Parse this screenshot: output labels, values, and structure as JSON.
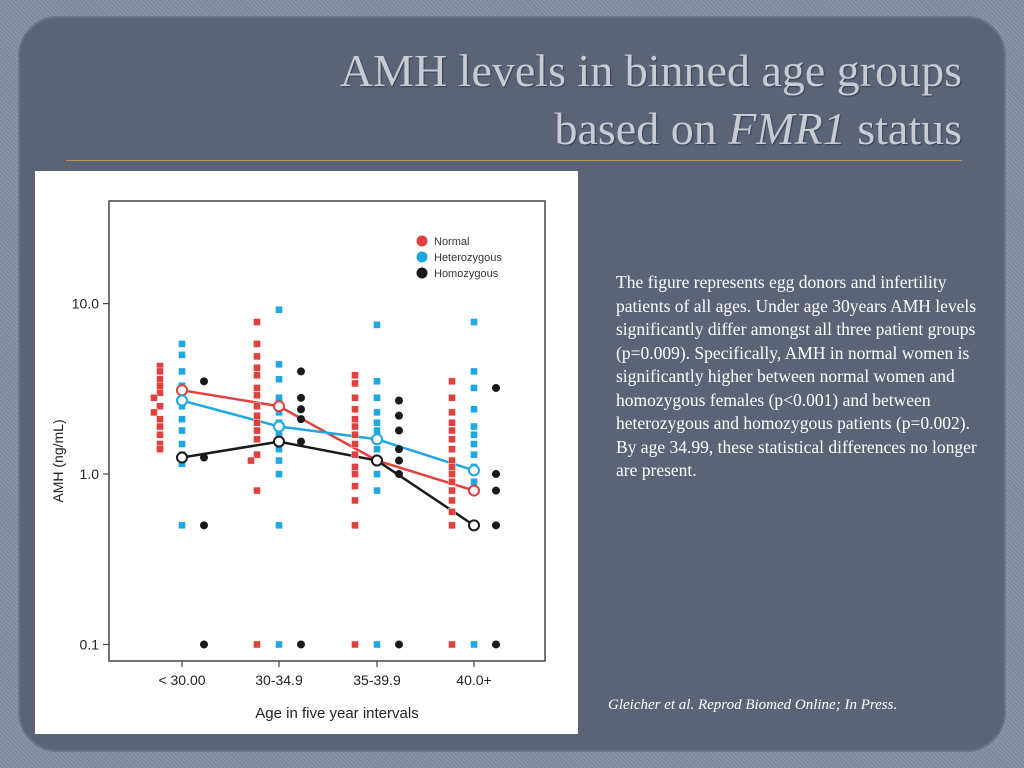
{
  "slide": {
    "title_line1": "AMH levels in binned age groups",
    "title_line2_prefix": "based on ",
    "title_line2_italic": "FMR1",
    "title_line2_suffix": " status",
    "description": "The figure represents egg donors and infertility patients of all ages. Under age 30years AMH levels significantly differ amongst all three patient groups (p=0.009). Specifically, AMH in normal women is significantly higher between normal women and homozygous females (p<0.001) and between heterozygous and homozygous patients (p=0.002). By age 34.99, these statistical differences no longer are present.",
    "citation": "Gleicher et al. Reprod Biomed Online; In Press.",
    "colors": {
      "background": "#8a94a6",
      "panel": "#5c6377",
      "title": "#c9cbd3",
      "rule": "#b59a52"
    }
  },
  "chart_data": {
    "type": "scatter",
    "title": "",
    "xlabel": "Age in five year intervals",
    "ylabel": "AMH (ng/mL)",
    "yscale": "log",
    "ylim": [
      0.08,
      40
    ],
    "ytick_labels": [
      "0.1",
      "1.0",
      "10.0"
    ],
    "ytick_values": [
      0.1,
      1.0,
      10.0
    ],
    "categories": [
      "< 30.00",
      "30-34.9",
      "35-39.9",
      "40.0+"
    ],
    "legend_position": "top-right",
    "series": [
      {
        "name": "Normal",
        "color": "#e0413c",
        "mean_line": [
          3.1,
          2.5,
          1.2,
          0.8
        ],
        "points": [
          [
            0,
            4.3
          ],
          [
            0,
            4.0
          ],
          [
            0,
            3.6
          ],
          [
            0,
            3.3
          ],
          [
            0,
            3.0
          ],
          [
            0,
            2.8
          ],
          [
            0,
            2.5
          ],
          [
            0,
            2.3
          ],
          [
            0,
            2.1
          ],
          [
            0,
            1.9
          ],
          [
            0,
            1.7
          ],
          [
            0,
            1.5
          ],
          [
            0,
            1.4
          ],
          [
            1,
            7.8
          ],
          [
            1,
            5.8
          ],
          [
            1,
            4.9
          ],
          [
            1,
            4.2
          ],
          [
            1,
            3.8
          ],
          [
            1,
            3.2
          ],
          [
            1,
            2.9
          ],
          [
            1,
            2.5
          ],
          [
            1,
            2.2
          ],
          [
            1,
            2.0
          ],
          [
            1,
            1.8
          ],
          [
            1,
            1.6
          ],
          [
            1,
            1.3
          ],
          [
            1,
            1.2
          ],
          [
            1,
            0.8
          ],
          [
            1,
            0.1
          ],
          [
            2,
            3.8
          ],
          [
            2,
            3.4
          ],
          [
            2,
            2.8
          ],
          [
            2,
            2.4
          ],
          [
            2,
            2.1
          ],
          [
            2,
            1.9
          ],
          [
            2,
            1.7
          ],
          [
            2,
            1.5
          ],
          [
            2,
            1.3
          ],
          [
            2,
            1.1
          ],
          [
            2,
            1.0
          ],
          [
            2,
            0.85
          ],
          [
            2,
            0.7
          ],
          [
            2,
            0.5
          ],
          [
            2,
            0.1
          ],
          [
            3,
            3.5
          ],
          [
            3,
            2.8
          ],
          [
            3,
            2.3
          ],
          [
            3,
            2.0
          ],
          [
            3,
            1.8
          ],
          [
            3,
            1.6
          ],
          [
            3,
            1.4
          ],
          [
            3,
            1.2
          ],
          [
            3,
            1.1
          ],
          [
            3,
            1.0
          ],
          [
            3,
            0.9
          ],
          [
            3,
            0.8
          ],
          [
            3,
            0.7
          ],
          [
            3,
            0.6
          ],
          [
            3,
            0.5
          ],
          [
            3,
            0.1
          ]
        ]
      },
      {
        "name": "Heterozygous",
        "color": "#1ea7e1",
        "mean_line": [
          2.7,
          1.9,
          1.6,
          1.05
        ],
        "points": [
          [
            0,
            5.8
          ],
          [
            0,
            5.0
          ],
          [
            0,
            4.0
          ],
          [
            0,
            3.3
          ],
          [
            0,
            2.9
          ],
          [
            0,
            2.5
          ],
          [
            0,
            2.1
          ],
          [
            0,
            1.8
          ],
          [
            0,
            1.5
          ],
          [
            0,
            1.3
          ],
          [
            0,
            1.15
          ],
          [
            0,
            0.5
          ],
          [
            1,
            9.2
          ],
          [
            1,
            4.4
          ],
          [
            1,
            3.6
          ],
          [
            1,
            2.8
          ],
          [
            1,
            2.3
          ],
          [
            1,
            2.0
          ],
          [
            1,
            1.7
          ],
          [
            1,
            1.4
          ],
          [
            1,
            1.2
          ],
          [
            1,
            1.0
          ],
          [
            1,
            0.5
          ],
          [
            1,
            0.1
          ],
          [
            2,
            7.5
          ],
          [
            2,
            3.5
          ],
          [
            2,
            2.8
          ],
          [
            2,
            2.3
          ],
          [
            2,
            2.0
          ],
          [
            2,
            1.8
          ],
          [
            2,
            1.6
          ],
          [
            2,
            1.4
          ],
          [
            2,
            1.2
          ],
          [
            2,
            1.0
          ],
          [
            2,
            0.8
          ],
          [
            2,
            0.1
          ],
          [
            3,
            7.8
          ],
          [
            3,
            4.0
          ],
          [
            3,
            3.2
          ],
          [
            3,
            2.4
          ],
          [
            3,
            1.9
          ],
          [
            3,
            1.7
          ],
          [
            3,
            1.5
          ],
          [
            3,
            1.3
          ],
          [
            3,
            1.1
          ],
          [
            3,
            0.9
          ],
          [
            3,
            0.8
          ],
          [
            3,
            0.5
          ],
          [
            3,
            0.1
          ]
        ]
      },
      {
        "name": "Homozygous",
        "color": "#1a1a1a",
        "mean_line": [
          1.25,
          1.55,
          1.2,
          0.5
        ],
        "points": [
          [
            0,
            3.5
          ],
          [
            0,
            1.25
          ],
          [
            0,
            0.5
          ],
          [
            0,
            0.1
          ],
          [
            1,
            4.0
          ],
          [
            1,
            2.8
          ],
          [
            1,
            2.4
          ],
          [
            1,
            2.1
          ],
          [
            1,
            1.55
          ],
          [
            1,
            0.1
          ],
          [
            2,
            2.7
          ],
          [
            2,
            2.2
          ],
          [
            2,
            1.8
          ],
          [
            2,
            1.4
          ],
          [
            2,
            1.2
          ],
          [
            2,
            1.0
          ],
          [
            2,
            0.1
          ],
          [
            3,
            3.2
          ],
          [
            3,
            1.0
          ],
          [
            3,
            0.8
          ],
          [
            3,
            0.5
          ],
          [
            3,
            0.1
          ]
        ]
      }
    ]
  }
}
